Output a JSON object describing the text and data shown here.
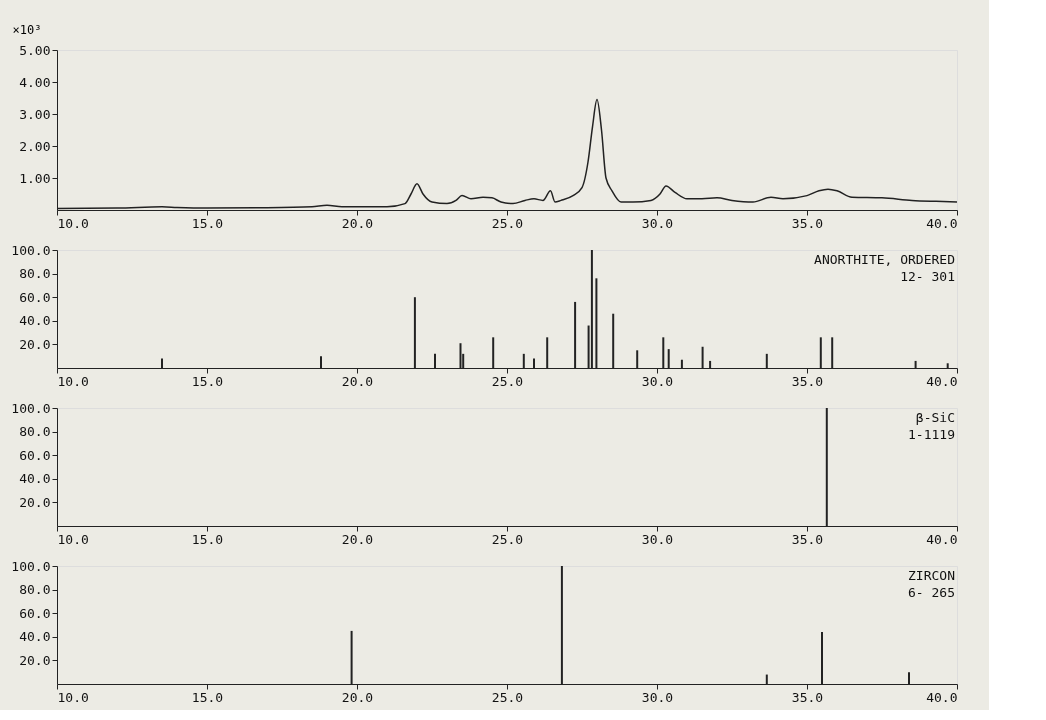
{
  "chart_data": [
    {
      "type": "line",
      "ylabel": "×10³",
      "xlim": [
        10,
        40
      ],
      "xticks": [
        {
          "value": 10,
          "label": "10.0"
        },
        {
          "value": 15,
          "label": "15.0"
        },
        {
          "value": 20,
          "label": "20.0"
        },
        {
          "value": 25,
          "label": "25.0"
        },
        {
          "value": 30,
          "label": "30.0"
        },
        {
          "value": 35,
          "label": "35.0"
        },
        {
          "value": 40,
          "label": "40.0"
        }
      ],
      "ylim": [
        0,
        5
      ],
      "yticks": [
        {
          "value": 1,
          "label": "1.00"
        },
        {
          "value": 2,
          "label": "2.00"
        },
        {
          "value": 3,
          "label": "3.00"
        },
        {
          "value": 4,
          "label": "4.00"
        },
        {
          "value": 5,
          "label": "5.00"
        }
      ],
      "grid": false,
      "series": [
        {
          "color": "#222222",
          "x": [
            10,
            12,
            13.5,
            14,
            15,
            17,
            18.5,
            19,
            19.5,
            21,
            21.6,
            21.8,
            22.0,
            22.2,
            22.5,
            23,
            23.3,
            23.5,
            23.8,
            24.2,
            24.5,
            24.8,
            25.2,
            25.6,
            25.9,
            26.2,
            26.45,
            26.6,
            26.8,
            27.2,
            27.5,
            27.7,
            27.85,
            28.0,
            28.15,
            28.3,
            28.5,
            28.8,
            29.2,
            29.8,
            30.1,
            30.3,
            30.6,
            31.0,
            31.5,
            32.0,
            32.5,
            33.2,
            33.8,
            34.2,
            35.0,
            35.4,
            35.7,
            36.0,
            36.5,
            37.5,
            38.5,
            39.3,
            40
          ],
          "values": [
            0.05,
            0.06,
            0.1,
            0.08,
            0.06,
            0.07,
            0.1,
            0.15,
            0.1,
            0.1,
            0.2,
            0.5,
            0.82,
            0.5,
            0.25,
            0.2,
            0.3,
            0.45,
            0.35,
            0.4,
            0.38,
            0.25,
            0.2,
            0.3,
            0.35,
            0.3,
            0.6,
            0.25,
            0.3,
            0.45,
            0.7,
            1.5,
            2.6,
            3.45,
            2.5,
            1.0,
            0.6,
            0.25,
            0.25,
            0.3,
            0.5,
            0.75,
            0.55,
            0.35,
            0.35,
            0.38,
            0.3,
            0.25,
            0.4,
            0.35,
            0.45,
            0.6,
            0.65,
            0.6,
            0.4,
            0.38,
            0.3,
            0.27,
            0.25
          ]
        }
      ]
    },
    {
      "type": "bar",
      "annotations": [
        "ANORTHITE, ORDERED",
        "12- 301"
      ],
      "xlim": [
        10,
        40
      ],
      "xticks": [
        {
          "value": 10,
          "label": "10.0"
        },
        {
          "value": 15,
          "label": "15.0"
        },
        {
          "value": 20,
          "label": "20.0"
        },
        {
          "value": 25,
          "label": "25.0"
        },
        {
          "value": 30,
          "label": "30.0"
        },
        {
          "value": 35,
          "label": "35.0"
        },
        {
          "value": 40,
          "label": "40.0"
        }
      ],
      "ylim": [
        0,
        100
      ],
      "yticks": [
        {
          "value": 20,
          "label": "20.0"
        },
        {
          "value": 40,
          "label": "40.0"
        },
        {
          "value": 60,
          "label": "60.0"
        },
        {
          "value": 80,
          "label": "80.0"
        },
        {
          "value": 100,
          "label": "100.0"
        }
      ],
      "grid": false,
      "series": [
        {
          "color": "#222222",
          "x": [
            13.5,
            18.8,
            21.93,
            22.6,
            23.45,
            23.54,
            24.54,
            25.56,
            25.9,
            26.34,
            27.27,
            27.72,
            27.83,
            27.98,
            28.54,
            29.34,
            30.21,
            30.39,
            30.83,
            31.52,
            31.77,
            33.66,
            35.46,
            35.84,
            38.62,
            39.69
          ],
          "values": [
            8,
            10,
            60,
            12,
            21,
            12,
            26,
            12,
            8,
            26,
            56,
            36,
            100,
            76,
            46,
            15,
            26,
            16,
            7,
            18,
            6,
            12,
            26,
            26,
            6,
            4
          ]
        }
      ]
    },
    {
      "type": "bar",
      "annotations": [
        "β-SiC",
        "1-1119"
      ],
      "xlim": [
        10,
        40
      ],
      "xticks": [
        {
          "value": 10,
          "label": "10.0"
        },
        {
          "value": 15,
          "label": "15.0"
        },
        {
          "value": 20,
          "label": "20.0"
        },
        {
          "value": 25,
          "label": "25.0"
        },
        {
          "value": 30,
          "label": "30.0"
        },
        {
          "value": 35,
          "label": "35.0"
        },
        {
          "value": 40,
          "label": "40.0"
        }
      ],
      "ylim": [
        0,
        100
      ],
      "yticks": [
        {
          "value": 20,
          "label": "20.0"
        },
        {
          "value": 40,
          "label": "40.0"
        },
        {
          "value": 60,
          "label": "60.0"
        },
        {
          "value": 80,
          "label": "80.0"
        },
        {
          "value": 100,
          "label": "100.0"
        }
      ],
      "grid": false,
      "series": [
        {
          "color": "#222222",
          "x": [
            35.66
          ],
          "values": [
            100
          ]
        }
      ]
    },
    {
      "type": "bar",
      "annotations": [
        "ZIRCON",
        "6- 265"
      ],
      "xlim": [
        10,
        40
      ],
      "xticks": [
        {
          "value": 10,
          "label": "10.0"
        },
        {
          "value": 15,
          "label": "15.0"
        },
        {
          "value": 20,
          "label": "20.0"
        },
        {
          "value": 25,
          "label": "25.0"
        },
        {
          "value": 30,
          "label": "30.0"
        },
        {
          "value": 35,
          "label": "35.0"
        },
        {
          "value": 40,
          "label": "40.0"
        }
      ],
      "ylim": [
        0,
        100
      ],
      "yticks": [
        {
          "value": 20,
          "label": "20.0"
        },
        {
          "value": 40,
          "label": "40.0"
        },
        {
          "value": 60,
          "label": "60.0"
        },
        {
          "value": 80,
          "label": "80.0"
        },
        {
          "value": 100,
          "label": "100.0"
        }
      ],
      "grid": false,
      "series": [
        {
          "color": "#222222",
          "x": [
            19.82,
            26.83,
            33.66,
            35.5,
            38.4
          ],
          "values": [
            45,
            100,
            8,
            44,
            10
          ]
        }
      ]
    }
  ]
}
